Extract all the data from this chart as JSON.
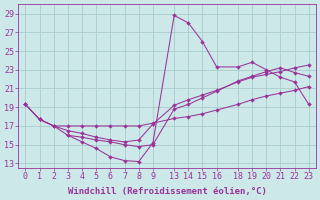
{
  "background_color": "#cce8e8",
  "grid_color": "#aacccc",
  "line_color": "#993399",
  "xlim": [
    -0.5,
    23.5
  ],
  "ylim": [
    12.5,
    30.0
  ],
  "xlabel": "Windchill (Refroidissement éolien,°C)",
  "yticks": [
    13,
    15,
    17,
    19,
    21,
    23,
    25,
    27,
    29
  ],
  "tick_fontsize": 6.0,
  "xlabel_fontsize": 6.5,
  "lines": [
    {
      "x": [
        0,
        1,
        2,
        3,
        4,
        5,
        6,
        7,
        8,
        9,
        13,
        14,
        15,
        16,
        18,
        19,
        20,
        21,
        22,
        23
      ],
      "y": [
        19.3,
        17.7,
        17.0,
        16.0,
        15.3,
        14.6,
        13.7,
        13.3,
        13.2,
        15.2,
        28.8,
        28.0,
        26.0,
        23.3,
        23.3,
        23.8,
        23.0,
        22.2,
        21.7,
        19.3
      ]
    },
    {
      "x": [
        0,
        1,
        2,
        3,
        4,
        5,
        6,
        7,
        8,
        9,
        13,
        14,
        15,
        16,
        18,
        19,
        20,
        21,
        22,
        23
      ],
      "y": [
        19.3,
        17.7,
        17.0,
        16.5,
        16.2,
        15.8,
        15.5,
        15.3,
        15.5,
        17.2,
        19.2,
        19.8,
        20.3,
        20.8,
        21.7,
        22.2,
        22.5,
        22.8,
        23.2,
        23.5
      ]
    },
    {
      "x": [
        0,
        1,
        2,
        3,
        4,
        5,
        6,
        7,
        8,
        9,
        13,
        14,
        15,
        16,
        18,
        19,
        20,
        21,
        22,
        23
      ],
      "y": [
        19.3,
        17.7,
        17.0,
        17.0,
        17.0,
        17.0,
        17.0,
        17.0,
        17.0,
        17.3,
        17.8,
        18.0,
        18.3,
        18.7,
        19.3,
        19.8,
        20.2,
        20.5,
        20.8,
        21.2
      ]
    },
    {
      "x": [
        3,
        4,
        5,
        6,
        7,
        8,
        9,
        13,
        14,
        15,
        16,
        18,
        19,
        20,
        21,
        22,
        23
      ],
      "y": [
        16.0,
        15.8,
        15.5,
        15.3,
        15.0,
        14.8,
        15.0,
        18.8,
        19.3,
        20.0,
        20.7,
        21.8,
        22.3,
        22.8,
        23.2,
        22.7,
        22.3
      ]
    }
  ],
  "pos_map": {
    "0": 0,
    "1": 1,
    "2": 2,
    "3": 3,
    "4": 4,
    "5": 5,
    "6": 6,
    "7": 7,
    "8": 8,
    "9": 9,
    "13": 10.5,
    "14": 11.5,
    "15": 12.5,
    "16": 13.5,
    "18": 15,
    "19": 16,
    "20": 17,
    "21": 18,
    "22": 19,
    "23": 20
  },
  "xtick_pos": [
    0,
    1,
    2,
    3,
    4,
    5,
    6,
    7,
    8,
    9,
    10.5,
    11.5,
    12.5,
    13.5,
    15,
    16,
    17,
    18,
    19,
    20
  ],
  "xtick_labels": [
    "0",
    "1",
    "2",
    "3",
    "4",
    "5",
    "6",
    "7",
    "8",
    "9",
    "13",
    "14",
    "15",
    "16",
    "18",
    "19",
    "20",
    "21",
    "22",
    "23"
  ]
}
